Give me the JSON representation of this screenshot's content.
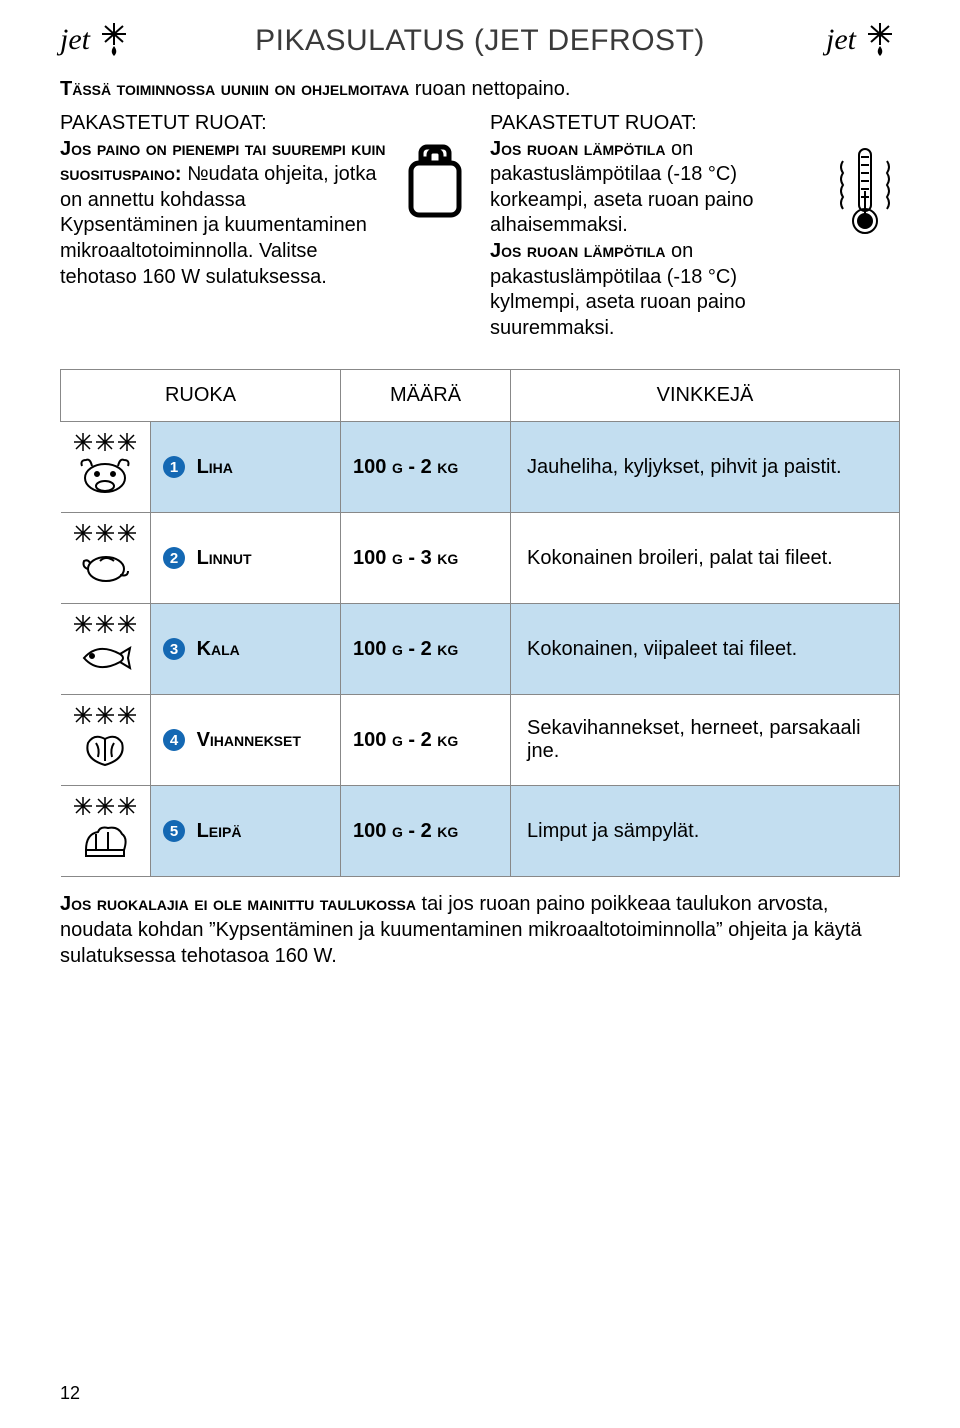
{
  "logo_text": "jet",
  "title": "PIKASULATUS (JET DEFROST)",
  "intro_sc": "Tässä toiminnossa uuniin on ohjelmoitava",
  "intro_rest": " ruoan nettopaino.",
  "col_left": {
    "heading": "PAKASTETUT RUOAT:",
    "l1_sc": "Jos paino on pienempi tai suurempi kuin suosituspaino:",
    "l1_rest": " №udata ohjeita, jotka on annettu kohdassa Kypsentäminen ja kuumentaminen mikroaaltotoiminnolla. Valitse tehotaso 160 W sulatuksessa."
  },
  "col_right": {
    "heading": "PAKASTETUT RUOAT:",
    "p1_sc": "Jos ruoan lämpötila",
    "p1_rest": " on pakastuslämpötilaa (-18 °C) korkeampi, aseta ruoan paino alhaisemmaksi.",
    "p2_sc": "Jos ruoan lämpötila",
    "p2_rest": " on pakastuslämpötilaa (-18 °C) kylmempi, aseta ruoan paino suuremmaksi."
  },
  "table": {
    "headers": [
      "RUOKA",
      "MÄÄRÄ",
      "VINKKEJÄ"
    ],
    "rows": [
      {
        "num": "1",
        "name": "Liha",
        "amount_num": "100",
        "amount_unit1": "g",
        "amount_sep": " - 2 ",
        "amount_unit2": "kg",
        "tip": "Jauheliha, kyljykset, pihvit ja paistit.",
        "blue": true,
        "icon": "cow"
      },
      {
        "num": "2",
        "name": "Linnut",
        "amount_num": "100",
        "amount_unit1": "g",
        "amount_sep": " - 3 ",
        "amount_unit2": "kg",
        "tip": "Kokonainen broileri, palat tai fileet.",
        "blue": false,
        "icon": "poultry"
      },
      {
        "num": "3",
        "name": "Kala",
        "amount_num": "100",
        "amount_unit1": "g",
        "amount_sep": " - 2 ",
        "amount_unit2": "kg",
        "tip": "Kokonainen, viipaleet tai fileet.",
        "blue": true,
        "icon": "fish"
      },
      {
        "num": "4",
        "name": "Vihannekset",
        "amount_num": "100",
        "amount_unit1": "g",
        "amount_sep": " - 2 ",
        "amount_unit2": "kg",
        "tip": "Sekavihannekset, herneet, parsakaali jne.",
        "blue": false,
        "icon": "veg"
      },
      {
        "num": "5",
        "name": "Leipä",
        "amount_num": "100",
        "amount_unit1": "g",
        "amount_sep": " - 2 ",
        "amount_unit2": "kg",
        "tip": "Limput ja sämpylät.",
        "blue": true,
        "icon": "bread"
      }
    ]
  },
  "footer": {
    "sc": "Jos ruokalajia ei ole mainittu taulukossa",
    "rest": " tai jos ruoan paino poikkeaa taulukon arvosta, noudata kohdan ”Kypsentäminen ja kuumentaminen mikroaaltotoiminnolla” ohjeita ja käytä sulatuksessa tehotasoa 160 W."
  },
  "page_number": "12"
}
